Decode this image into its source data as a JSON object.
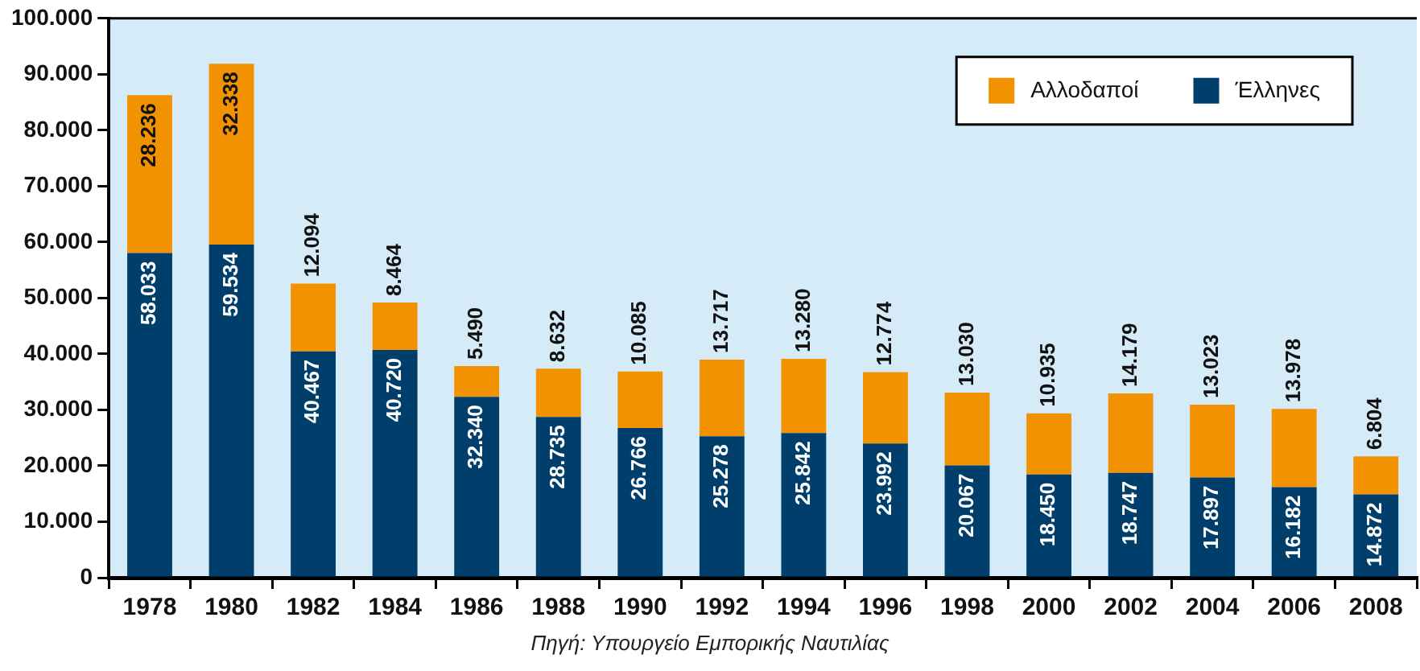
{
  "chart_data": {
    "type": "bar",
    "stacked": true,
    "categories": [
      "1978",
      "1980",
      "1982",
      "1984",
      "1986",
      "1988",
      "1990",
      "1992",
      "1994",
      "1996",
      "1998",
      "2000",
      "2002",
      "2004",
      "2006",
      "2008"
    ],
    "series": [
      {
        "name": "Έλληνες",
        "color": "#003f6b",
        "values": [
          58033,
          59534,
          40467,
          40720,
          32340,
          28735,
          26766,
          25278,
          25842,
          23992,
          20067,
          18450,
          18747,
          17897,
          16182,
          14872
        ],
        "value_labels": [
          "58.033",
          "59.534",
          "40.467",
          "40.720",
          "32.340",
          "28.735",
          "26.766",
          "25.278",
          "25.842",
          "23.992",
          "20.067",
          "18.450",
          "18.747",
          "17.897",
          "16.182",
          "14.872"
        ]
      },
      {
        "name": "Αλλοδαποί",
        "color": "#f39200",
        "values": [
          28236,
          32338,
          12094,
          8464,
          5490,
          8632,
          10085,
          13717,
          13280,
          12774,
          13030,
          10935,
          14179,
          13023,
          13978,
          6804
        ],
        "value_labels": [
          "28.236",
          "32.338",
          "12.094",
          "8.464",
          "5.490",
          "8.632",
          "10.085",
          "13.717",
          "13.280",
          "12.774",
          "13.030",
          "10.935",
          "14.179",
          "13.023",
          "13.978",
          "6.804"
        ]
      }
    ],
    "ylim": [
      0,
      100000
    ],
    "yticks": [
      {
        "value": 0,
        "label": "0"
      },
      {
        "value": 10000,
        "label": "10.000"
      },
      {
        "value": 20000,
        "label": "20.000"
      },
      {
        "value": 30000,
        "label": "30.000"
      },
      {
        "value": 40000,
        "label": "40.000"
      },
      {
        "value": 50000,
        "label": "50.000"
      },
      {
        "value": 60000,
        "label": "60.000"
      },
      {
        "value": 70000,
        "label": "70.000"
      },
      {
        "value": 80000,
        "label": "80.000"
      },
      {
        "value": 90000,
        "label": "90.000"
      },
      {
        "value": 100000,
        "label": "100.000"
      }
    ],
    "grid": false,
    "legend": "top right",
    "annotations": [
      "Πηγή: Υπουργείο Εμπορικής Ναυτιλίας"
    ]
  }
}
